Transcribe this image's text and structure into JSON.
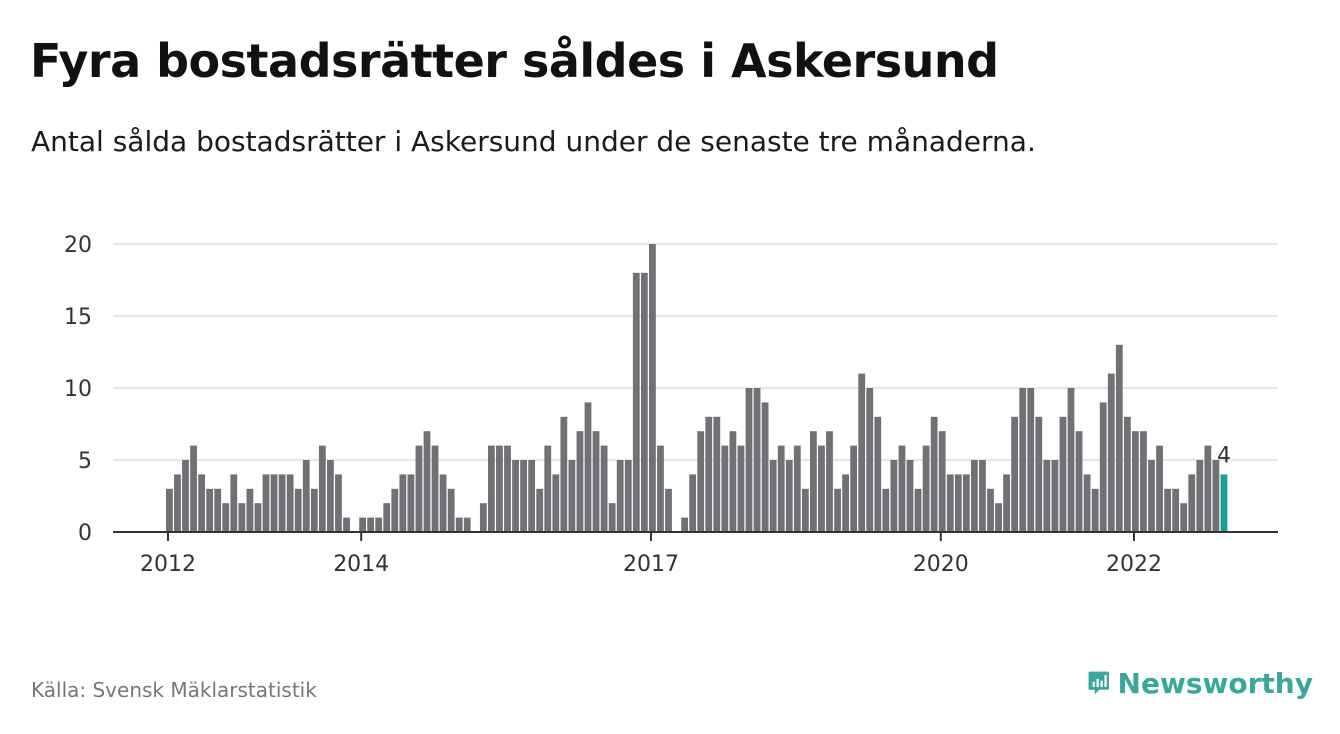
{
  "title": "Fyra bostadsrätter såldes i Askersund",
  "subtitle": "Antal sålda bostadsrätter i Askersund under de senaste tre månaderna.",
  "source": "Källa: Svensk Mäklarstatistik",
  "brand": {
    "name": "Newsworthy",
    "icon": "newsworthy-logo-icon"
  },
  "colors": {
    "bar": "#717075",
    "highlight": "#1a9e96",
    "grid": "#dddddd",
    "axis": "#333333"
  },
  "chart_data": {
    "type": "bar",
    "title": "",
    "xlabel": "",
    "ylabel": "",
    "ylim": [
      0,
      20
    ],
    "yticks": [
      0,
      5,
      10,
      15,
      20
    ],
    "grid": true,
    "x_tick_labels": [
      {
        "label": "2012",
        "index": 0
      },
      {
        "label": "2014",
        "index": 24
      },
      {
        "label": "2017",
        "index": 60
      },
      {
        "label": "2020",
        "index": 96
      },
      {
        "label": "2022",
        "index": 120
      }
    ],
    "values": [
      3,
      4,
      5,
      6,
      4,
      3,
      3,
      2,
      4,
      2,
      3,
      2,
      4,
      4,
      4,
      4,
      3,
      5,
      3,
      6,
      5,
      4,
      1,
      0,
      1,
      1,
      1,
      2,
      3,
      4,
      4,
      6,
      7,
      6,
      4,
      3,
      1,
      1,
      0,
      2,
      6,
      6,
      6,
      5,
      5,
      5,
      3,
      6,
      4,
      8,
      5,
      7,
      9,
      7,
      6,
      2,
      5,
      5,
      18,
      18,
      20,
      6,
      3,
      0,
      1,
      4,
      7,
      8,
      8,
      6,
      7,
      6,
      10,
      10,
      9,
      5,
      6,
      5,
      6,
      3,
      7,
      6,
      7,
      3,
      4,
      6,
      11,
      10,
      8,
      3,
      5,
      6,
      5,
      3,
      6,
      8,
      7,
      4,
      4,
      4,
      5,
      5,
      3,
      2,
      4,
      8,
      10,
      10,
      8,
      5,
      5,
      8,
      10,
      7,
      4,
      3,
      9,
      11,
      13,
      8,
      7,
      7,
      5,
      6,
      3,
      3,
      2,
      4,
      5,
      6,
      5,
      4
    ],
    "highlight_index": 131,
    "highlight_label": "4"
  }
}
